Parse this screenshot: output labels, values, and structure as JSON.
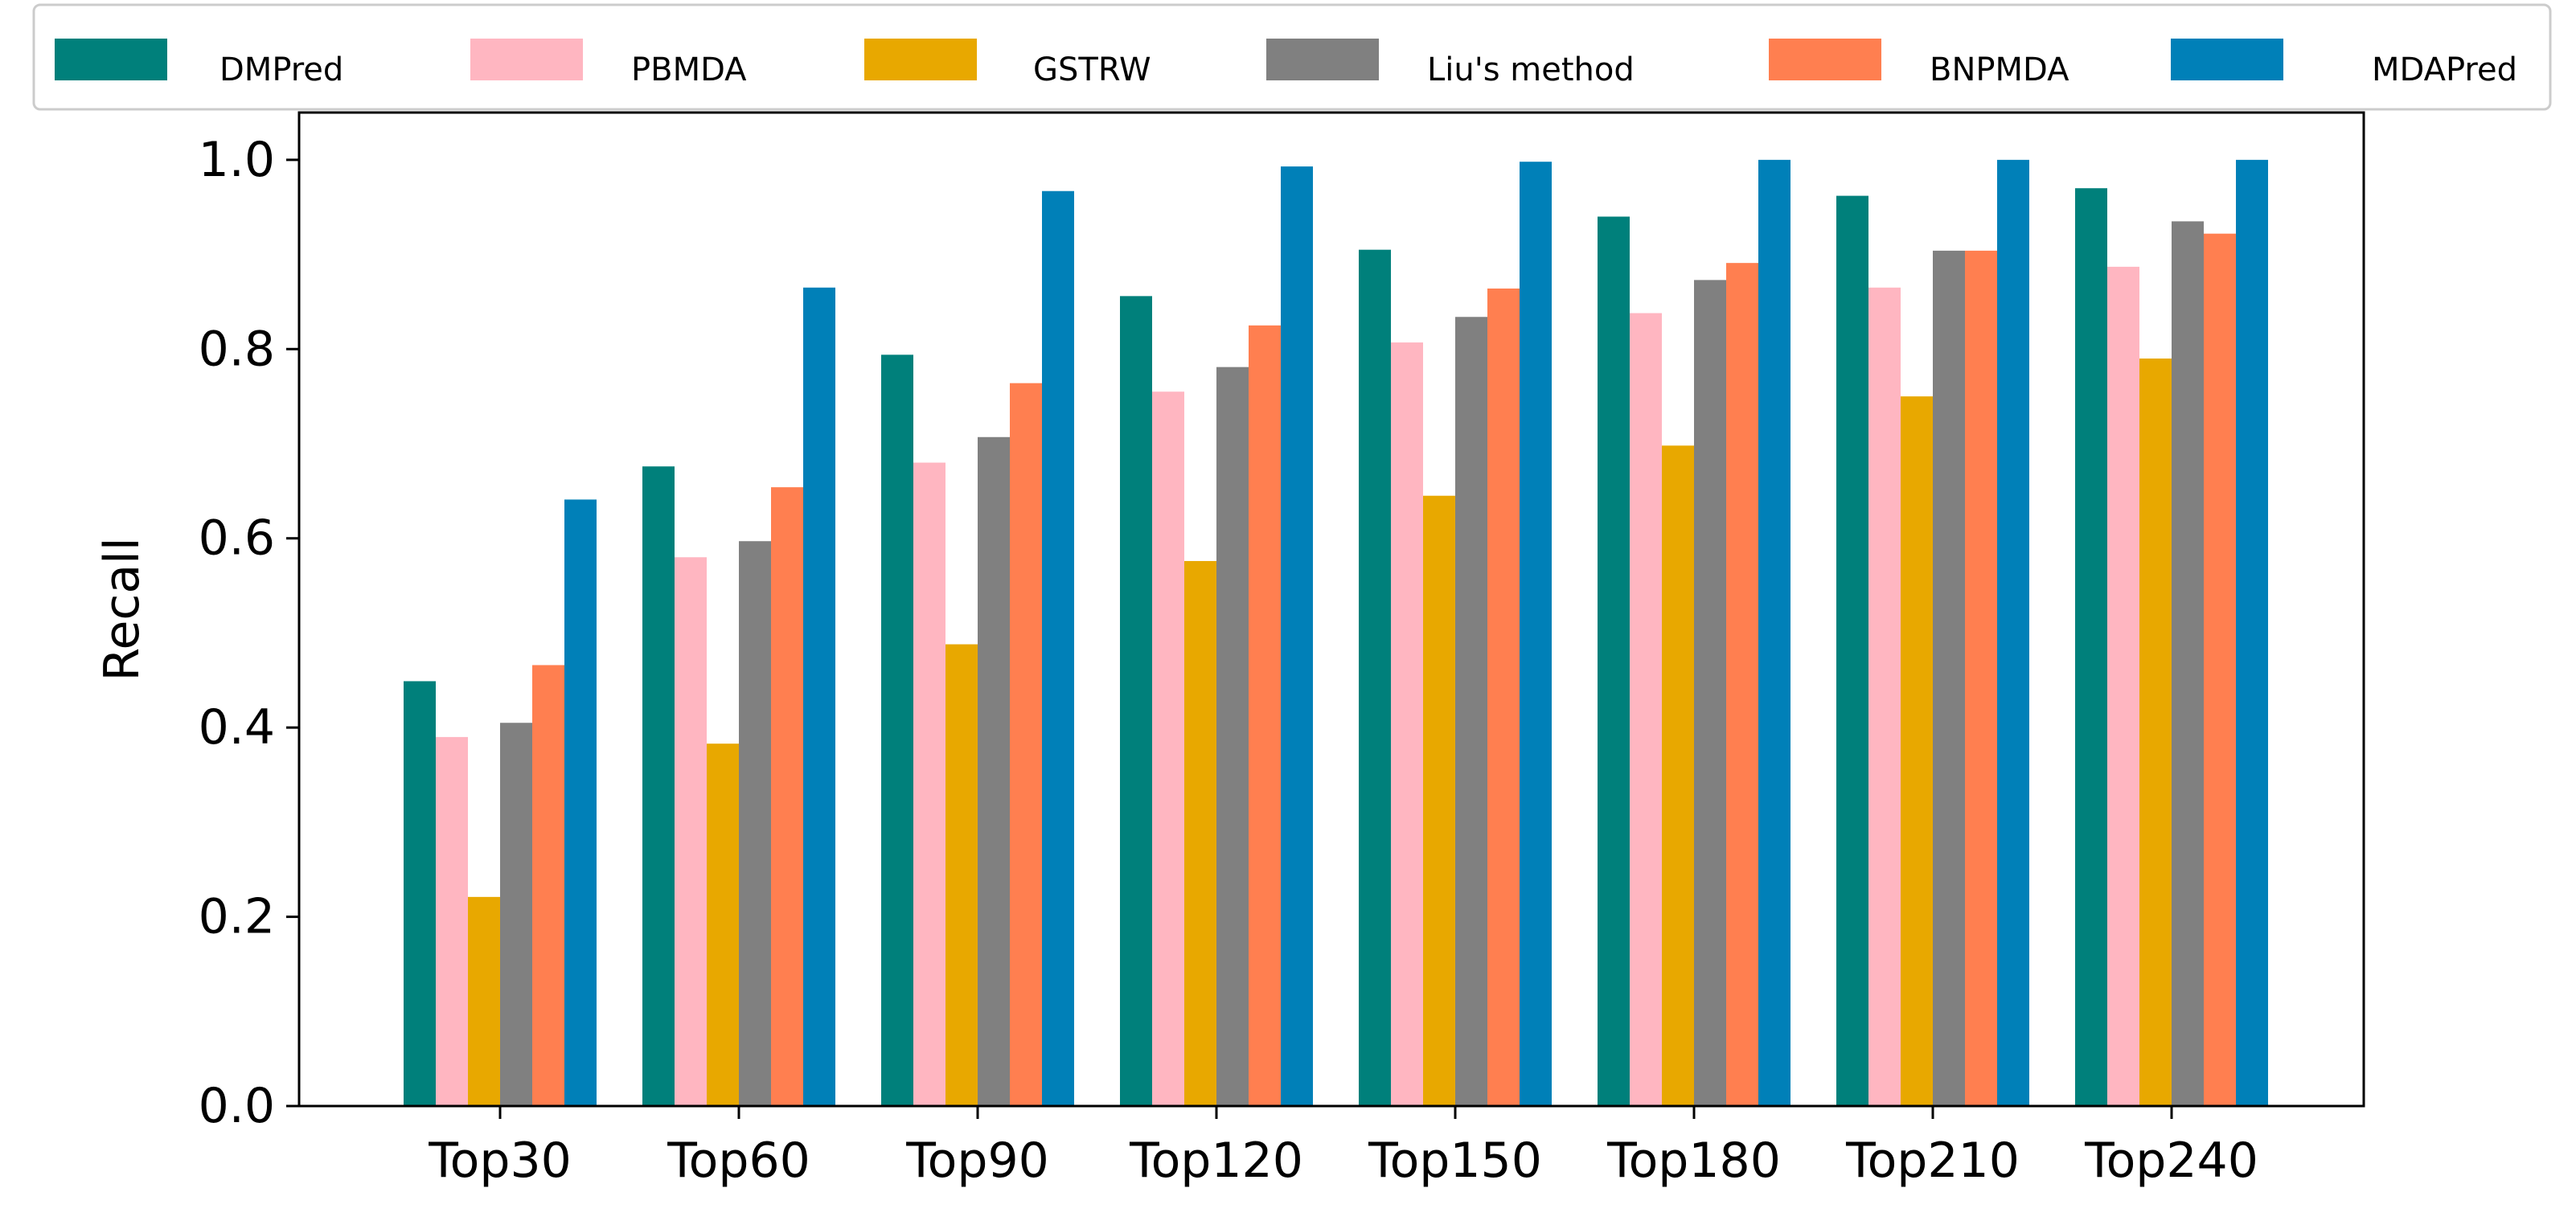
{
  "chart_data": {
    "type": "bar",
    "title": "",
    "xlabel": "",
    "ylabel": "Recall",
    "ylim": [
      0,
      1.05
    ],
    "yticks": [
      "0.0",
      "0.2",
      "0.4",
      "0.6",
      "0.8",
      "1.0"
    ],
    "ytick_values": [
      0,
      0.2,
      0.4,
      0.6,
      0.8,
      1.0
    ],
    "categories": [
      "Top30",
      "Top60",
      "Top90",
      "Top120",
      "Top150",
      "Top180",
      "Top210",
      "Top240"
    ],
    "legend_position": "top",
    "grid": false,
    "series": [
      {
        "name": "DMPred",
        "color": "#00807b",
        "values": [
          0.449,
          0.676,
          0.794,
          0.856,
          0.905,
          0.94,
          0.962,
          0.97
        ]
      },
      {
        "name": "PBMDA",
        "color": "#ffb6c1",
        "values": [
          0.39,
          0.58,
          0.68,
          0.755,
          0.807,
          0.838,
          0.865,
          0.887
        ]
      },
      {
        "name": "GSTRW",
        "color": "#e8a800",
        "values": [
          0.221,
          0.383,
          0.488,
          0.576,
          0.645,
          0.698,
          0.75,
          0.79
        ]
      },
      {
        "name": "Liu's method",
        "color": "#808080",
        "values": [
          0.405,
          0.597,
          0.707,
          0.781,
          0.834,
          0.873,
          0.904,
          0.935
        ]
      },
      {
        "name": "BNPMDA",
        "color": "#ff7f50",
        "values": [
          0.466,
          0.654,
          0.764,
          0.825,
          0.864,
          0.891,
          0.904,
          0.922
        ]
      },
      {
        "name": "MDAPred",
        "color": "#0080b8",
        "values": [
          0.641,
          0.865,
          0.967,
          0.993,
          0.998,
          1.0,
          1.0,
          1.0
        ]
      }
    ]
  }
}
